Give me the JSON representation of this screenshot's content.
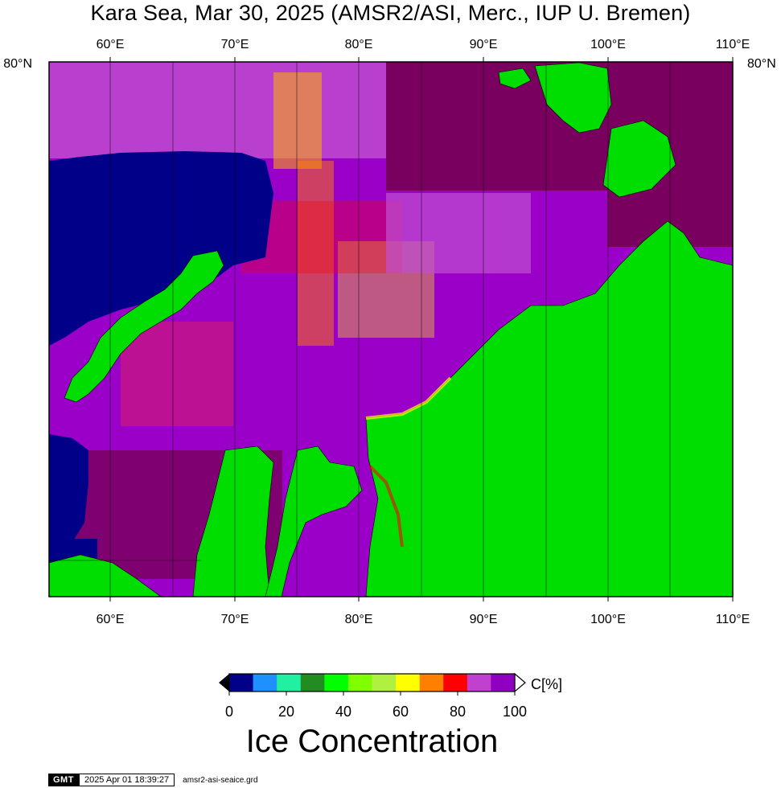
{
  "title": "Kara Sea, Mar 30, 2025 (AMSR2/ASI, Merc., IUP U. Bremen)",
  "map": {
    "lon_min": 55,
    "lon_max": 110,
    "lat_top_label": "80°N",
    "lon_ticks": [
      {
        "lon": 60,
        "label": "60°E"
      },
      {
        "lon": 70,
        "label": "70°E"
      },
      {
        "lon": 80,
        "label": "80°E"
      },
      {
        "lon": 90,
        "label": "90°E"
      },
      {
        "lon": 100,
        "label": "100°E"
      },
      {
        "lon": 110,
        "label": "110°E"
      }
    ],
    "colors": {
      "land": "#00dd00",
      "open_water": "#000088",
      "full_ice": "#7a0060",
      "high_ice": "#9a00c8",
      "mid_ice": "#c050d0"
    }
  },
  "colorbar": {
    "unit_label": "C[%]",
    "segments": [
      {
        "color": "#000088"
      },
      {
        "color": "#1e90ff"
      },
      {
        "color": "#20f0a0"
      },
      {
        "color": "#228b22"
      },
      {
        "color": "#00ff00"
      },
      {
        "color": "#80ff00"
      },
      {
        "color": "#b0f040"
      },
      {
        "color": "#ffff00"
      },
      {
        "color": "#ff8000"
      },
      {
        "color": "#ff0000"
      },
      {
        "color": "#c040d0"
      },
      {
        "color": "#9000c0"
      }
    ],
    "ticks": [
      "0",
      "20",
      "40",
      "60",
      "80",
      "100"
    ],
    "title": "Ice Concentration"
  },
  "footer": {
    "logo": "GMT",
    "timestamp": "2025 Apr 01 18:39:27",
    "filename": "amsr2-asi-seaice.grd"
  }
}
